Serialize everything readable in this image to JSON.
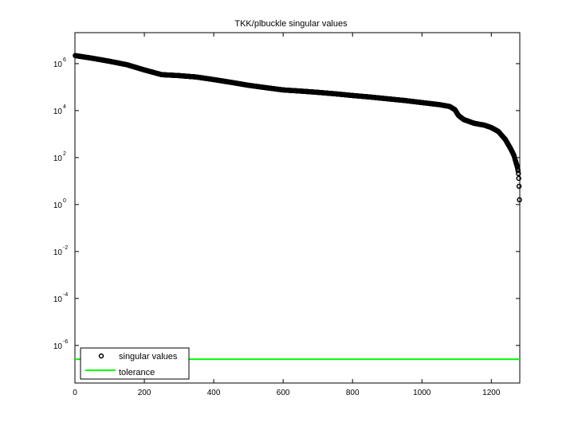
{
  "chart_data": {
    "type": "scatter",
    "title": "TKK/plbuckle singular values",
    "xlabel": "",
    "ylabel": "",
    "xlim": [
      0,
      1282
    ],
    "ylim_log10": [
      -7.6,
      7.32
    ],
    "yscale": "log",
    "grid": false,
    "legend_position": "lower left",
    "x_ticks": [
      0,
      200,
      400,
      600,
      800,
      1000,
      1200
    ],
    "y_ticks_exponents": [
      -6,
      -4,
      -2,
      0,
      2,
      4,
      6
    ],
    "series": [
      {
        "name": "singular values",
        "marker": "circle",
        "color": "#000000",
        "x": [
          1,
          50,
          100,
          150,
          200,
          250,
          300,
          350,
          400,
          450,
          500,
          550,
          600,
          650,
          700,
          750,
          800,
          850,
          900,
          950,
          1000,
          1050,
          1080,
          1095,
          1105,
          1120,
          1150,
          1180,
          1200,
          1220,
          1240,
          1255,
          1265,
          1270,
          1275,
          1277,
          1278,
          1279,
          1280,
          1281
        ],
        "values": [
          2200000.0,
          1700000.0,
          1260000.0,
          900000.0,
          540000.0,
          340000.0,
          310000.0,
          270000.0,
          210000.0,
          160000.0,
          120000.0,
          95000.0,
          76000.0,
          68000.0,
          60000.0,
          52000.0,
          44000.0,
          38000.0,
          32000.0,
          27000.0,
          22000.0,
          18000.0,
          15000.0,
          11000.0,
          6300.0,
          4200.0,
          2900.0,
          2400.0,
          1900.0,
          1300.0,
          600.0,
          250.0,
          126.0,
          70,
          39,
          28,
          21,
          13,
          6,
          1.6
        ]
      },
      {
        "name": "tolerance",
        "marker": "line",
        "color": "#00ff00",
        "x": [
          0,
          1282
        ],
        "values": [
          2.6e-07,
          2.6e-07
        ]
      }
    ]
  },
  "legend": {
    "items": [
      {
        "label": "singular values"
      },
      {
        "label": "tolerance"
      }
    ]
  },
  "colors": {
    "tolerance": "#00ff00",
    "markers": "#000000",
    "axes": "#000000"
  }
}
